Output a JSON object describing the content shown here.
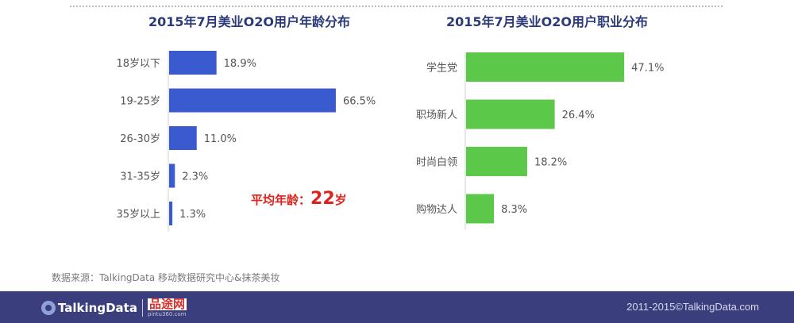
{
  "chart_data": [
    {
      "type": "bar",
      "orientation": "horizontal",
      "title": "2015年7月美业O2O用户年龄分布",
      "categories": [
        "18岁以下",
        "19-25岁",
        "26-30岁",
        "31-35岁",
        "35岁以上"
      ],
      "values": [
        18.9,
        66.5,
        11.0,
        2.3,
        1.3
      ],
      "value_labels": [
        "18.9%",
        "66.5%",
        "11.0%",
        "2.3%",
        "1.3%"
      ],
      "unit": "%",
      "xlim": [
        0,
        70
      ],
      "color": "#3a5bd0",
      "grid": false,
      "annotation": {
        "prefix": "平均年龄：",
        "value": "22",
        "suffix": "岁",
        "color": "#e0211b"
      }
    },
    {
      "type": "bar",
      "orientation": "horizontal",
      "title": "2015年7月美业O2O用户职业分布",
      "categories": [
        "学生党",
        "职场新人",
        "时尚白领",
        "购物达人"
      ],
      "values": [
        47.1,
        26.4,
        18.2,
        8.3
      ],
      "value_labels": [
        "47.1%",
        "26.4%",
        "18.2%",
        "8.3%"
      ],
      "unit": "%",
      "xlim": [
        0,
        70
      ],
      "color": "#5cc84a",
      "grid": false
    }
  ],
  "source_text": "数据来源：TalkingData 移动数据研究中心&抹茶美妆",
  "footer": {
    "logo_text": "TalkingData",
    "partner_name": "品途网",
    "partner_url": "pintu360.com",
    "copyright": "2011-2015©TalkingData.com"
  },
  "colors": {
    "title": "#2b3a78",
    "footer_bg": "#3a3e7c",
    "age_bar": "#3a5bd0",
    "job_bar": "#5cc84a"
  }
}
